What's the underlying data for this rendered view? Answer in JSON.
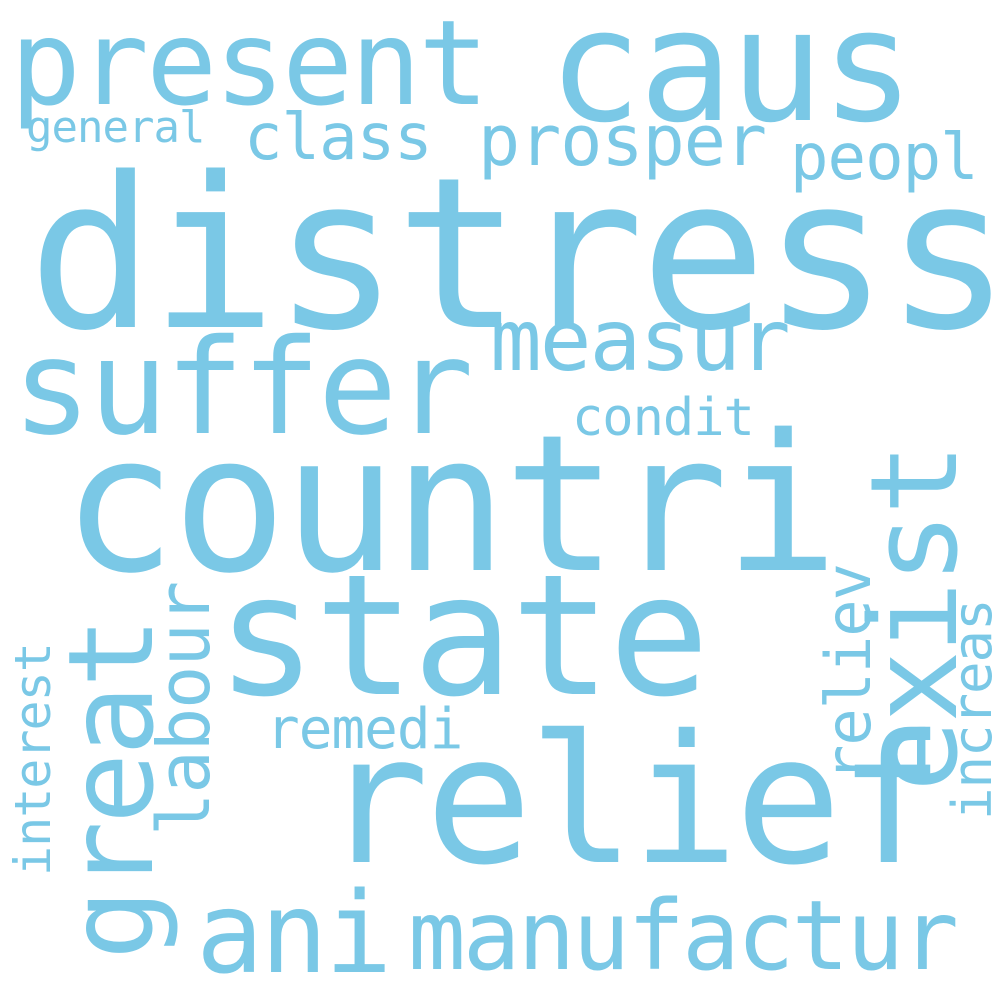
{
  "word_cloud": {
    "color": "#7ac8e6",
    "background": "#ffffff",
    "words": {
      "distress": "distress",
      "countri": "countri",
      "relief": "relief",
      "state": "state",
      "caus": "caus",
      "suffer": "suffer",
      "present": "present",
      "exist": "exist",
      "great": "great",
      "ani": "ani",
      "manufactur": "manufactur",
      "measur": "measur",
      "prosper": "prosper",
      "class": "class",
      "peopl": "peopl",
      "labour": "labour",
      "remedi": "remedi",
      "reliev": "reliev",
      "condit": "condit",
      "increas": "increas",
      "interest": "interest",
      "general": "general"
    }
  }
}
